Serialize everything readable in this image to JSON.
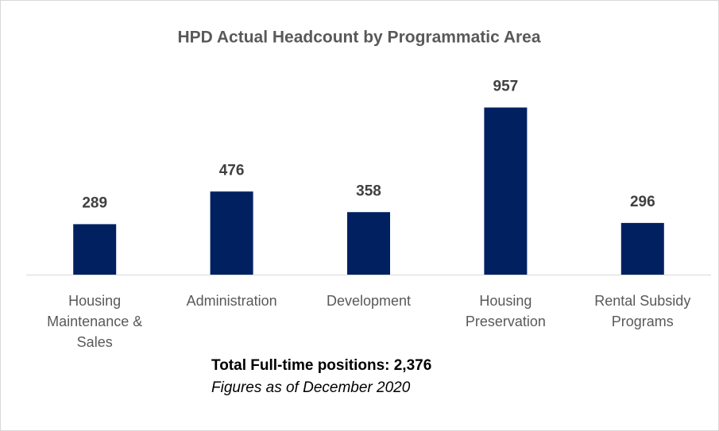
{
  "chart_data": {
    "type": "bar",
    "title": "HPD Actual Headcount by Programmatic Area",
    "categories": [
      "Housing Maintenance & Sales",
      "Administration",
      "Development",
      "Housing Preservation",
      "Rental Subsidy Programs"
    ],
    "values": [
      289,
      476,
      358,
      957,
      296
    ],
    "color": "#002060",
    "ylim": [
      0,
      1000
    ],
    "annotations": [
      "Total Full-time positions: 2,376",
      "Figures as of December 2020"
    ]
  }
}
